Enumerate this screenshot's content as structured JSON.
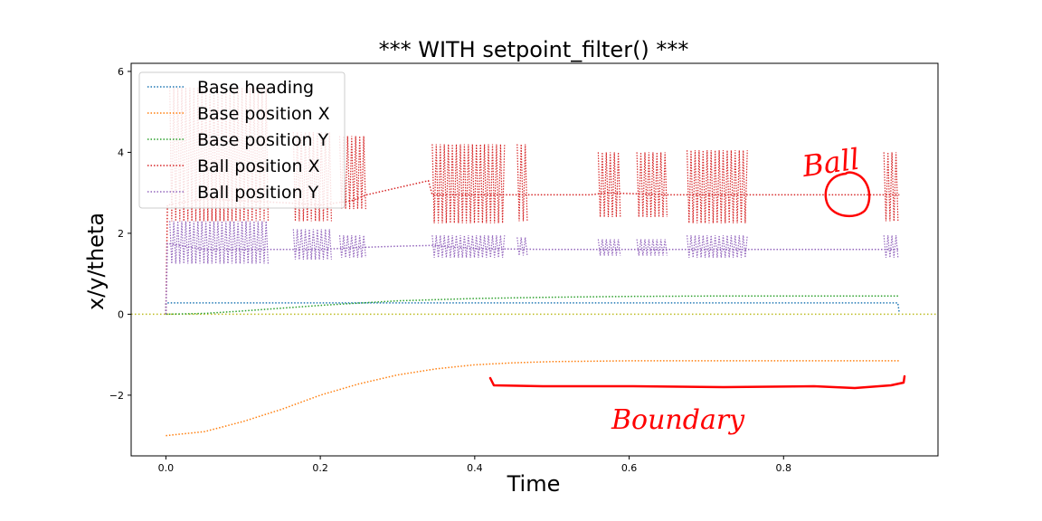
{
  "chart_data": {
    "type": "line",
    "title": "*** WITH setpoint_filter() ***",
    "xlabel": "Time",
    "ylabel": "x/y/theta",
    "xlim": [
      -0.045,
      1.0
    ],
    "ylim": [
      -3.5,
      6.2
    ],
    "xticks": [
      "0.0",
      "0.2",
      "0.4",
      "0.6",
      "0.8"
    ],
    "xtick_values": [
      0.0,
      0.2,
      0.4,
      0.6,
      0.8
    ],
    "yticks": [
      "6",
      "4",
      "2",
      "0",
      "−2"
    ],
    "ytick_values": [
      6,
      4,
      2,
      0,
      -2
    ],
    "grid": false,
    "legend_position": "top-left",
    "reference_line": {
      "y": 0,
      "color": "#bcbd22",
      "style": "dotted"
    },
    "series": [
      {
        "name": "Base heading",
        "color": "#1f77b4",
        "x": [
          0.0,
          0.0,
          0.002,
          0.1,
          0.3,
          0.5,
          0.7,
          0.9,
          0.948,
          0.95
        ],
        "values": [
          0.0,
          0.27,
          0.28,
          0.28,
          0.28,
          0.28,
          0.28,
          0.28,
          0.28,
          0.02
        ]
      },
      {
        "name": "Base position X",
        "color": "#ff7f0e",
        "x": [
          0.0,
          0.05,
          0.1,
          0.15,
          0.2,
          0.25,
          0.3,
          0.35,
          0.4,
          0.45,
          0.5,
          0.6,
          0.7,
          0.8,
          0.9,
          0.95
        ],
        "values": [
          -3.0,
          -2.9,
          -2.65,
          -2.35,
          -2.0,
          -1.72,
          -1.5,
          -1.35,
          -1.25,
          -1.2,
          -1.17,
          -1.15,
          -1.15,
          -1.15,
          -1.15,
          -1.15
        ]
      },
      {
        "name": "Base position Y",
        "color": "#2ca02c",
        "x": [
          0.0,
          0.05,
          0.1,
          0.2,
          0.3,
          0.4,
          0.5,
          0.6,
          0.7,
          0.8,
          0.9,
          0.95
        ],
        "values": [
          0.0,
          0.02,
          0.08,
          0.22,
          0.33,
          0.39,
          0.42,
          0.44,
          0.45,
          0.45,
          0.45,
          0.45
        ]
      },
      {
        "name": "Ball position X",
        "color": "#d62728",
        "x": [
          0.0,
          0.002,
          0.05,
          0.1,
          0.16,
          0.2,
          0.24,
          0.26,
          0.34,
          0.345,
          0.4,
          0.45,
          0.5,
          0.55,
          0.57,
          0.65,
          0.7,
          0.75,
          0.8,
          0.85,
          0.9,
          0.95
        ],
        "values": [
          0.0,
          2.7,
          2.85,
          2.8,
          2.75,
          2.7,
          2.8,
          2.95,
          3.3,
          2.95,
          2.95,
          2.95,
          2.95,
          2.95,
          3.0,
          2.95,
          2.95,
          2.95,
          2.95,
          2.95,
          2.95,
          2.95
        ]
      },
      {
        "name": "Ball position Y",
        "color": "#9467bd",
        "x": [
          0.0,
          0.002,
          0.05,
          0.1,
          0.15,
          0.2,
          0.25,
          0.3,
          0.345,
          0.4,
          0.5,
          0.6,
          0.7,
          0.8,
          0.9,
          0.95
        ],
        "values": [
          0.0,
          1.75,
          1.6,
          1.6,
          1.6,
          1.6,
          1.65,
          1.68,
          1.7,
          1.62,
          1.6,
          1.6,
          1.6,
          1.6,
          1.6,
          1.6
        ]
      }
    ],
    "ball_x_spike_bursts": [
      {
        "from": 0.005,
        "to": 0.135,
        "hi": 5.6,
        "lo": 2.3
      },
      {
        "from": 0.165,
        "to": 0.215,
        "hi": 4.5,
        "lo": 2.3
      },
      {
        "from": 0.225,
        "to": 0.26,
        "hi": 4.4,
        "lo": 2.6
      },
      {
        "from": 0.345,
        "to": 0.44,
        "hi": 4.2,
        "lo": 2.25
      },
      {
        "from": 0.455,
        "to": 0.47,
        "hi": 4.2,
        "lo": 2.3
      },
      {
        "from": 0.56,
        "to": 0.59,
        "hi": 4.0,
        "lo": 2.4
      },
      {
        "from": 0.61,
        "to": 0.65,
        "hi": 4.0,
        "lo": 2.4
      },
      {
        "from": 0.675,
        "to": 0.755,
        "hi": 4.05,
        "lo": 2.25
      },
      {
        "from": 0.93,
        "to": 0.95,
        "hi": 4.0,
        "lo": 2.3
      }
    ],
    "ball_y_spike_bursts": [
      {
        "from": 0.005,
        "to": 0.135,
        "hi": 2.3,
        "lo": 1.25
      },
      {
        "from": 0.165,
        "to": 0.215,
        "hi": 2.1,
        "lo": 1.35
      },
      {
        "from": 0.225,
        "to": 0.26,
        "hi": 1.95,
        "lo": 1.4
      },
      {
        "from": 0.345,
        "to": 0.44,
        "hi": 1.95,
        "lo": 1.4
      },
      {
        "from": 0.455,
        "to": 0.47,
        "hi": 1.9,
        "lo": 1.45
      },
      {
        "from": 0.56,
        "to": 0.59,
        "hi": 1.85,
        "lo": 1.45
      },
      {
        "from": 0.61,
        "to": 0.65,
        "hi": 1.85,
        "lo": 1.45
      },
      {
        "from": 0.675,
        "to": 0.755,
        "hi": 1.95,
        "lo": 1.4
      },
      {
        "from": 0.93,
        "to": 0.95,
        "hi": 1.95,
        "lo": 1.4
      }
    ]
  },
  "annotations": {
    "ball_label": "Ball",
    "boundary_label": "Boundary",
    "color": "#ff0000"
  }
}
